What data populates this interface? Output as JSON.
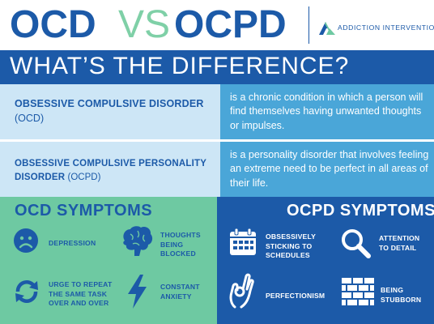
{
  "header": {
    "title_ocd": "OCD",
    "title_vs": "VS",
    "title_ocpd": "OCPD",
    "logo_text": "ADDICTION INTERVENTION",
    "logo_icon": "mountain-logo-icon"
  },
  "subtitle": "WHAT’S THE DIFFERENCE?",
  "definitions": {
    "ocd": {
      "term": "OBSESSIVE COMPULSIVE DISORDER",
      "abbr": "(OCD)",
      "definition": "is a chronic condition in which a person will find themselves having unwanted thoughts or impulses."
    },
    "ocpd": {
      "term": "OBSESSIVE COMPULSIVE PERSONALITY DISORDER",
      "abbr": "(OCPD)",
      "definition": "is a personality disorder that involves feeling an extreme need to be perfect in all areas of their life."
    }
  },
  "ocd_symptoms": {
    "title": "OCD SYMPTOMS",
    "items": [
      {
        "label": "DEPRESSION",
        "icon": "sad-face-icon"
      },
      {
        "label": "THOUGHTS BEING BLOCKED",
        "icon": "brain-icon"
      },
      {
        "label": "URGE TO REPEAT THE SAME TASK OVER AND OVER",
        "icon": "repeat-arrows-icon"
      },
      {
        "label": "CONSTANT ANXIETY",
        "icon": "lightning-icon"
      }
    ]
  },
  "ocpd_symptoms": {
    "title": "OCPD SYMPTOMS",
    "items": [
      {
        "label": "OBSESSIVELY STICKING TO SCHEDULES",
        "icon": "calendar-icon"
      },
      {
        "label": "ATTENTION TO DETAIL",
        "icon": "magnifier-icon"
      },
      {
        "label": "PERFECTIONISM",
        "icon": "ok-hand-icon"
      },
      {
        "label": "BEING STUBBORN",
        "icon": "brick-wall-icon"
      }
    ]
  },
  "colors": {
    "navy": "#1c5aa8",
    "mint": "#6ec9a2",
    "light_blue": "#cde6f6",
    "mid_blue": "#4aa6d8"
  }
}
